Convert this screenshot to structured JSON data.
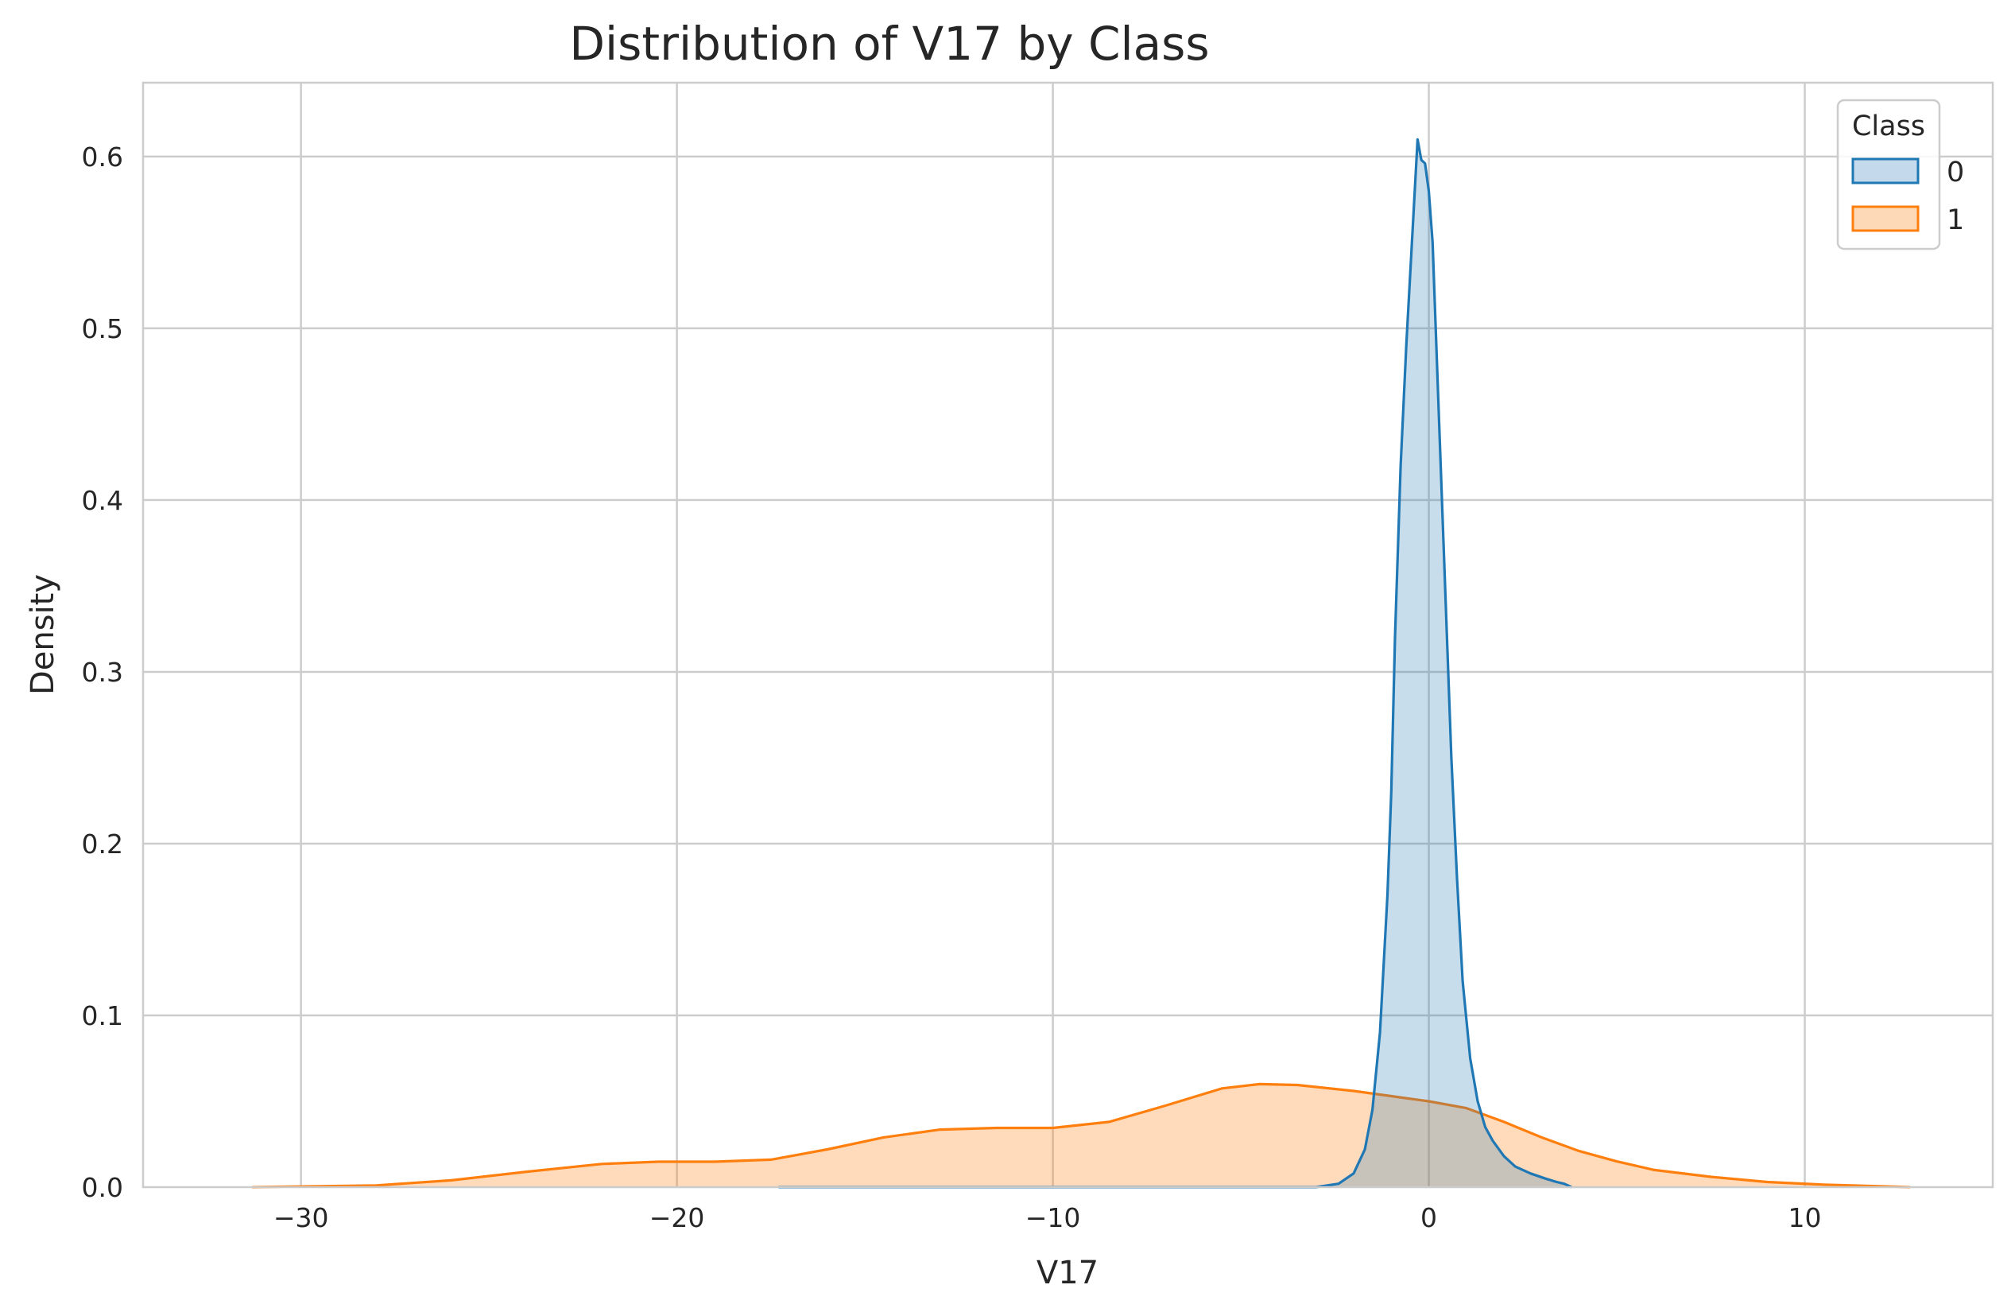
{
  "chart_data": {
    "type": "area",
    "title": "Distribution of V17 by Class",
    "xlabel": "V17",
    "ylabel": "Density",
    "xlim": [
      -34.2,
      15.0
    ],
    "ylim": [
      0.0,
      0.643
    ],
    "xticks": [
      -30,
      -20,
      -10,
      0,
      10
    ],
    "xtick_labels": [
      "−30",
      "−20",
      "−10",
      "0",
      "10"
    ],
    "yticks": [
      0.0,
      0.1,
      0.2,
      0.3,
      0.4,
      0.5,
      0.6
    ],
    "ytick_labels": [
      "0.0",
      "0.1",
      "0.2",
      "0.3",
      "0.4",
      "0.5",
      "0.6"
    ],
    "grid": true,
    "legend": {
      "title": "Class",
      "placement": "top-right"
    },
    "series": [
      {
        "name": "0",
        "color": "#1f77b4",
        "fill": "#c4d9ec",
        "x": [
          -17.3,
          -3.0,
          -2.4,
          -2.0,
          -1.7,
          -1.5,
          -1.3,
          -1.1,
          -1.0,
          -0.9,
          -0.75,
          -0.6,
          -0.45,
          -0.3,
          -0.2,
          -0.1,
          0.0,
          0.1,
          0.2,
          0.3,
          0.45,
          0.6,
          0.75,
          0.9,
          1.1,
          1.3,
          1.5,
          1.7,
          2.0,
          2.3,
          2.7,
          3.1,
          3.4,
          3.6,
          3.8
        ],
        "y": [
          0.0,
          0.0,
          0.002,
          0.008,
          0.022,
          0.045,
          0.09,
          0.17,
          0.23,
          0.32,
          0.42,
          0.49,
          0.55,
          0.61,
          0.598,
          0.596,
          0.58,
          0.55,
          0.49,
          0.43,
          0.34,
          0.25,
          0.18,
          0.12,
          0.075,
          0.05,
          0.035,
          0.027,
          0.018,
          0.012,
          0.008,
          0.005,
          0.003,
          0.002,
          0.0
        ]
      },
      {
        "name": "1",
        "color": "#ff7f0e",
        "fill": "#fdd9b8",
        "x": [
          -31.3,
          -28.0,
          -26.0,
          -24.0,
          -22.0,
          -20.5,
          -19.0,
          -17.5,
          -16.0,
          -14.5,
          -13.0,
          -11.5,
          -10.0,
          -8.5,
          -7.0,
          -5.5,
          -4.5,
          -3.5,
          -2.0,
          -1.0,
          0.0,
          1.0,
          2.0,
          3.0,
          4.0,
          5.0,
          6.0,
          7.5,
          9.0,
          10.5,
          12.0,
          12.8
        ],
        "y": [
          0.0,
          0.001,
          0.004,
          0.009,
          0.0135,
          0.0148,
          0.0148,
          0.016,
          0.022,
          0.029,
          0.0335,
          0.0345,
          0.0345,
          0.038,
          0.0475,
          0.0575,
          0.06,
          0.0595,
          0.056,
          0.053,
          0.05,
          0.046,
          0.038,
          0.029,
          0.021,
          0.015,
          0.01,
          0.006,
          0.003,
          0.0015,
          0.0005,
          0.0
        ]
      }
    ]
  }
}
